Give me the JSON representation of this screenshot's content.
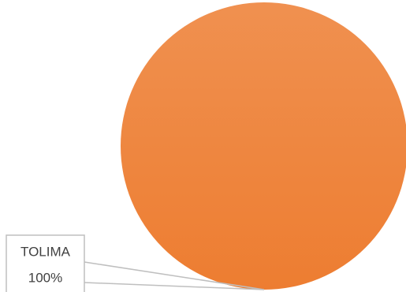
{
  "chart_data": {
    "type": "pie",
    "categories": [
      "TOLIMA"
    ],
    "values": [
      100
    ],
    "value_labels": [
      "100%"
    ],
    "colors": [
      "#ed7d31"
    ]
  }
}
